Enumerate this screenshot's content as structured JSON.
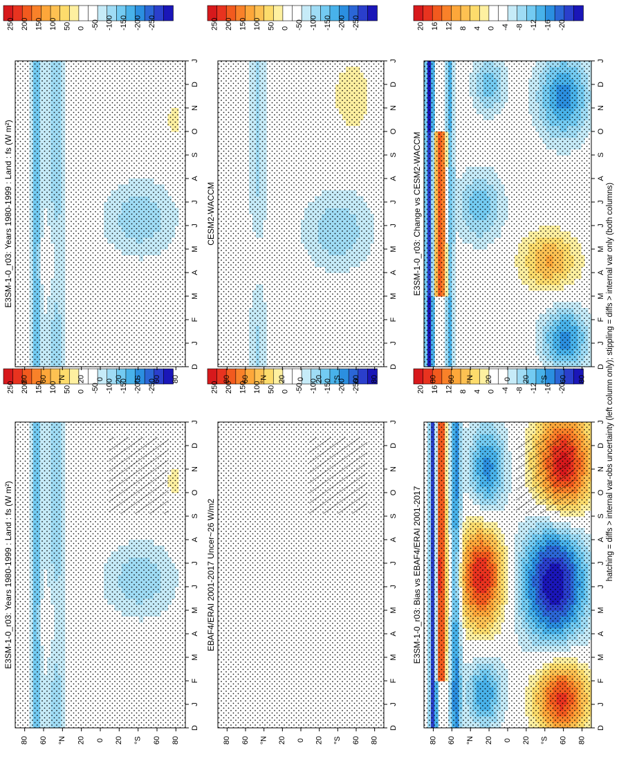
{
  "footnote": "hatching = diffs > internal var-obs uncertainty (left column only); stippling = diffs > internal var only (both columns)",
  "colors": {
    "warm": [
      "#d7191c",
      "#e8331f",
      "#f25a1e",
      "#f98129",
      "#fda73a",
      "#fdc152",
      "#fddc6c",
      "#fef0a0"
    ],
    "cool": [
      "#c6ebf8",
      "#9fdcf5",
      "#73cbf2",
      "#48b2ea",
      "#2b8fe0",
      "#2b66d6",
      "#2a3fcc",
      "#1a16b8"
    ]
  },
  "month_labels": [
    "D",
    "J",
    "F",
    "M",
    "A",
    "M",
    "J",
    "J",
    "A",
    "S",
    "O",
    "N",
    "D",
    "J"
  ],
  "lat_labels": [
    "80",
    "60",
    "°N",
    "20",
    "0",
    "20",
    "°S",
    "60",
    "80"
  ],
  "colorbars": {
    "mean": [
      "250",
      "200",
      "150",
      "100",
      "50",
      "0",
      "-50",
      "-100",
      "-150",
      "-200",
      "-250"
    ],
    "diff": [
      "20",
      "16",
      "12",
      "8",
      "4",
      "0",
      "-4",
      "-8",
      "-12",
      "-16",
      "-20"
    ]
  },
  "chart_data": [
    {
      "id": "top-left",
      "type": "heatmap",
      "title": "E3SM-1-0_r03: Years 1980-1999 : Land : fs (W m²)",
      "colorbar": "mean",
      "hatching": true,
      "features": [
        {
          "kind": "blob",
          "month": 6.3,
          "lat": -42,
          "months": 1.6,
          "lats": 38,
          "sign": "neg",
          "strength": 0.3
        },
        {
          "kind": "stripe",
          "lat": 47,
          "lats": 16,
          "from": 0,
          "to": 13,
          "sign": "neg",
          "strength": 0.25
        },
        {
          "kind": "stripe",
          "lat": 68,
          "lats": 8,
          "from": 0,
          "to": 13,
          "sign": "neg",
          "strength": 0.45
        },
        {
          "kind": "blob",
          "month": 4.5,
          "lat": 55,
          "months": 1.5,
          "lats": 12,
          "sign": "pos",
          "strength": 0.2
        },
        {
          "kind": "blob",
          "month": 10.5,
          "lat": -78,
          "months": 0.8,
          "lats": 8,
          "sign": "pos",
          "strength": 0.15
        }
      ]
    },
    {
      "id": "top-right",
      "type": "heatmap",
      "title": "E3SM-1-0_r03: Years 1980-1999 : Land : fs (W m²)",
      "colorbar": "mean",
      "hatching": false,
      "features": [
        {
          "kind": "blob",
          "month": 6.3,
          "lat": -42,
          "months": 1.6,
          "lats": 38,
          "sign": "neg",
          "strength": 0.3
        },
        {
          "kind": "stripe",
          "lat": 47,
          "lats": 16,
          "from": 0,
          "to": 13,
          "sign": "neg",
          "strength": 0.25
        },
        {
          "kind": "stripe",
          "lat": 68,
          "lats": 8,
          "from": 0,
          "to": 13,
          "sign": "neg",
          "strength": 0.45
        },
        {
          "kind": "blob",
          "month": 4.5,
          "lat": 55,
          "months": 1.5,
          "lats": 12,
          "sign": "pos",
          "strength": 0.2
        },
        {
          "kind": "blob",
          "month": 10.5,
          "lat": -78,
          "months": 0.8,
          "lats": 8,
          "sign": "pos",
          "strength": 0.15
        }
      ]
    },
    {
      "id": "middle-left",
      "type": "heatmap",
      "title": "EBAF4/ERAI 2001-2017 Uncer~26 W/m2",
      "colorbar": "mean",
      "hatching": true,
      "features": []
    },
    {
      "id": "middle-right",
      "type": "heatmap",
      "title": "CESM2-WACCM",
      "colorbar": "mean",
      "hatching": false,
      "features": [
        {
          "kind": "blob",
          "month": 5.8,
          "lat": -40,
          "months": 1.7,
          "lats": 38,
          "sign": "neg",
          "strength": 0.3
        },
        {
          "kind": "stripe",
          "lat": 47,
          "lats": 14,
          "from": 0,
          "to": 13,
          "sign": "neg",
          "strength": 0.22
        },
        {
          "kind": "blob",
          "month": 4.5,
          "lat": 50,
          "months": 1.5,
          "lats": 12,
          "sign": "pos",
          "strength": 0.2
        },
        {
          "kind": "blob",
          "month": 11.5,
          "lat": -55,
          "months": 1.5,
          "lats": 20,
          "sign": "pos",
          "strength": 0.2
        }
      ]
    },
    {
      "id": "bottom-left",
      "type": "heatmap",
      "title": "E3SM-1-0_r03: Bias vs EBAF4/ERAI 2001-2017",
      "colorbar": "diff",
      "hatching": true,
      "features": [
        {
          "kind": "blob",
          "month": 11.2,
          "lat": -60,
          "months": 2.2,
          "lats": 30,
          "sign": "pos",
          "strength": 0.95
        },
        {
          "kind": "blob",
          "month": 1.3,
          "lat": -58,
          "months": 1.6,
          "lats": 28,
          "sign": "pos",
          "strength": 0.85
        },
        {
          "kind": "blob",
          "month": 6.2,
          "lat": -50,
          "months": 2.6,
          "lats": 35,
          "sign": "neg",
          "strength": 1.0
        },
        {
          "kind": "blob",
          "month": 6.5,
          "lat": 28,
          "months": 2.2,
          "lats": 24,
          "sign": "pos",
          "strength": 0.9
        },
        {
          "kind": "blob",
          "month": 11,
          "lat": 22,
          "months": 2.0,
          "lats": 20,
          "sign": "neg",
          "strength": 0.6
        },
        {
          "kind": "blob",
          "month": 1.5,
          "lat": 25,
          "months": 1.5,
          "lats": 20,
          "sign": "neg",
          "strength": 0.55
        },
        {
          "kind": "stripe",
          "lat": 56,
          "lats": 8,
          "from": 0,
          "to": 13,
          "sign": "neg",
          "strength": 0.6
        },
        {
          "kind": "stripe",
          "lat": 72,
          "lats": 8,
          "from": 2,
          "to": 13,
          "sign": "pos",
          "strength": 0.85
        },
        {
          "kind": "stripe",
          "lat": 80,
          "lats": 6,
          "from": 0,
          "to": 13,
          "sign": "neg",
          "strength": 0.9
        }
      ]
    },
    {
      "id": "bottom-right",
      "type": "heatmap",
      "title": "E3SM-1-0_r03: Change vs CESM2-WACCM",
      "colorbar": "diff",
      "hatching": false,
      "features": [
        {
          "kind": "blob",
          "month": 11.5,
          "lat": -60,
          "months": 1.8,
          "lats": 28,
          "sign": "neg",
          "strength": 0.6
        },
        {
          "kind": "blob",
          "month": 1.2,
          "lat": -62,
          "months": 1.3,
          "lats": 25,
          "sign": "neg",
          "strength": 0.6
        },
        {
          "kind": "blob",
          "month": 4.5,
          "lat": -45,
          "months": 1.2,
          "lats": 30,
          "sign": "pos",
          "strength": 0.45
        },
        {
          "kind": "blob",
          "month": 6.8,
          "lat": 30,
          "months": 1.5,
          "lats": 25,
          "sign": "neg",
          "strength": 0.4
        },
        {
          "kind": "blob",
          "month": 12,
          "lat": 20,
          "months": 1.2,
          "lats": 18,
          "sign": "neg",
          "strength": 0.4
        },
        {
          "kind": "stripe",
          "lat": 72,
          "lats": 10,
          "from": 3,
          "to": 10,
          "sign": "pos",
          "strength": 0.75
        },
        {
          "kind": "stripe",
          "lat": 84,
          "lats": 6,
          "from": 0,
          "to": 13,
          "sign": "neg",
          "strength": 0.9
        },
        {
          "kind": "stripe",
          "lat": 62,
          "lats": 6,
          "from": 0,
          "to": 13,
          "sign": "neg",
          "strength": 0.45
        }
      ]
    }
  ]
}
